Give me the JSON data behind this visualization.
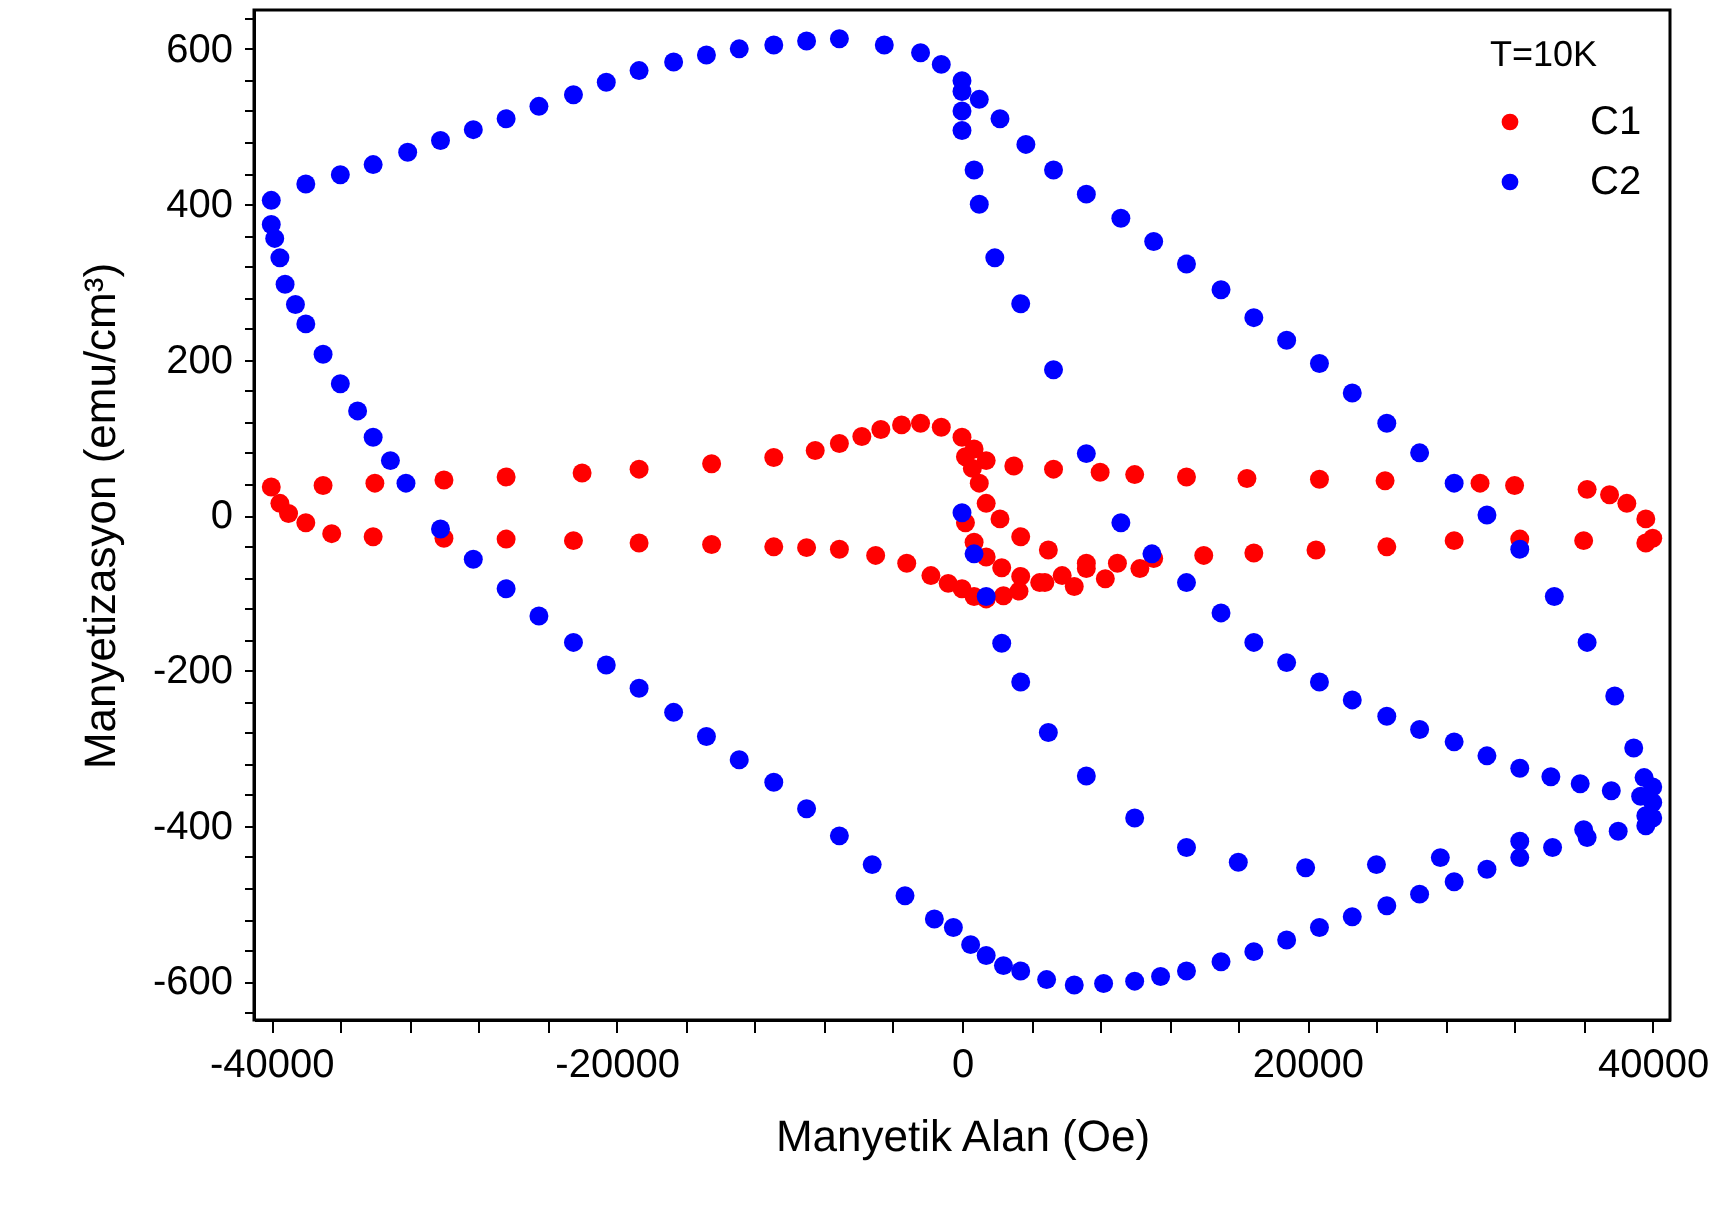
{
  "chart_data": {
    "type": "scatter",
    "xlabel": "Manyetik Alan (Oe)",
    "ylabel": "Manyetizasyon (emu/cm³)",
    "legend_title": "T=10K",
    "legend": "top right",
    "marker": "circle",
    "xlim": [
      -41000,
      41000
    ],
    "ylim": [
      -650,
      650
    ],
    "xticks": [
      -40000,
      {
        "value": -36000,
        "label": null
      },
      {
        "value": -32000,
        "label": null
      },
      {
        "value": -28000,
        "label": null
      },
      {
        "value": -24000,
        "label": null
      },
      -20000,
      {
        "value": -16000,
        "label": null
      },
      {
        "value": -12000,
        "label": null
      },
      {
        "value": -8000,
        "label": null
      },
      {
        "value": -4000,
        "label": null
      },
      0,
      {
        "value": 4000,
        "label": null
      },
      {
        "value": 8000,
        "label": null
      },
      {
        "value": 12000,
        "label": null
      },
      {
        "value": 16000,
        "label": null
      },
      20000,
      {
        "value": 24000,
        "label": null
      },
      {
        "value": 28000,
        "label": null
      },
      {
        "value": 32000,
        "label": null
      },
      {
        "value": 36000,
        "label": null
      },
      40000
    ],
    "yticks": [
      {
        "value": -640,
        "label": null
      },
      -600,
      {
        "value": -560,
        "label": null
      },
      {
        "value": -520,
        "label": null
      },
      {
        "value": -480,
        "label": null
      },
      {
        "value": -440,
        "label": null
      },
      -400,
      {
        "value": -360,
        "label": null
      },
      {
        "value": -320,
        "label": null
      },
      {
        "value": -280,
        "label": null
      },
      {
        "value": -240,
        "label": null
      },
      -200,
      {
        "value": -160,
        "label": null
      },
      {
        "value": -120,
        "label": null
      },
      {
        "value": -80,
        "label": null
      },
      {
        "value": -40,
        "label": null
      },
      0,
      {
        "value": 40,
        "label": null
      },
      {
        "value": 80,
        "label": null
      },
      {
        "value": 120,
        "label": null
      },
      {
        "value": 160,
        "label": null
      },
      200,
      {
        "value": 240,
        "label": null
      },
      {
        "value": 280,
        "label": null
      },
      {
        "value": 320,
        "label": null
      },
      {
        "value": 360,
        "label": null
      },
      400,
      {
        "value": 440,
        "label": null
      },
      {
        "value": 480,
        "label": null
      },
      {
        "value": 520,
        "label": null
      },
      {
        "value": 560,
        "label": null
      },
      600,
      {
        "value": 640,
        "label": null
      }
    ],
    "series": [
      {
        "name": "C1",
        "color": "#ff0000",
        "x": [
          -40000,
          -37000,
          -34000,
          -30000,
          -26400,
          -22000,
          -18700,
          -14500,
          -10900,
          -8500,
          -7100,
          -5800,
          -4700,
          -3500,
          -2400,
          -1200,
          0,
          700,
          1400,
          3000,
          5300,
          8000,
          10000,
          13000,
          16500,
          20700,
          24500,
          30000,
          32000,
          36200,
          37500,
          38500,
          39600,
          40000,
          39600,
          36000,
          32300,
          28500,
          24600,
          20500,
          16900,
          14000,
          11100,
          9000,
          7200,
          5800,
          4500,
          3300,
          2400,
          1400,
          700,
          0,
          -800,
          -1800,
          -3200,
          -5000,
          -7100,
          -9000,
          -10900,
          -14500,
          -18700,
          -22500,
          -26400,
          -30000,
          -34100,
          -36500,
          -38000,
          -39000,
          -39500,
          200,
          600,
          1000,
          1400,
          2200,
          3400,
          5000,
          7200,
          200,
          700,
          1400,
          2300,
          3400,
          4800,
          6500,
          8300,
          10300
        ],
        "values": [
          36,
          38,
          41,
          45,
          49,
          54,
          59,
          66,
          74,
          83,
          92,
          101,
          110,
          116,
          118,
          113,
          100,
          85,
          70,
          63,
          59,
          55,
          52,
          49,
          47,
          46,
          44,
          41,
          38,
          33,
          26,
          15,
          -5,
          -30,
          -36,
          -33,
          -31,
          -33,
          -41,
          -45,
          -49,
          -52,
          -56,
          -62,
          -69,
          -78,
          -87,
          -98,
          -104,
          -108,
          -105,
          -95,
          -88,
          -78,
          -62,
          -52,
          -44,
          -42,
          -41,
          -38,
          -36,
          -33,
          -31,
          -30,
          -28,
          -24,
          -10,
          2,
          15,
          75,
          60,
          41,
          15,
          -5,
          -28,
          -45,
          -62,
          -10,
          -35,
          -54,
          -68,
          -79,
          -87,
          -92,
          -82,
          -69
        ]
      },
      {
        "name": "C2",
        "color": "#0000ff",
        "x": [
          0,
          700,
          1400,
          2300,
          3400,
          5000,
          7200,
          10000,
          13000,
          16000,
          19900,
          24000,
          27700,
          32300,
          36000,
          39600,
          0,
          0,
          0,
          700,
          1000,
          1900,
          3400,
          5300,
          7200,
          9200,
          11000,
          13000,
          15000,
          16900,
          18800,
          20700,
          22600,
          24600,
          26500,
          28500,
          30400,
          32300,
          34100,
          35800,
          37600,
          39300,
          39500,
          38900,
          37800,
          36200,
          34300,
          32300,
          30400,
          28500,
          26500,
          24600,
          22600,
          20700,
          18800,
          16900,
          15000,
          13000,
          11100,
          9200,
          7200,
          5300,
          3700,
          2200,
          1000,
          0,
          -1200,
          -2400,
          -4500,
          -7100,
          -9000,
          -10900,
          -12900,
          -14800,
          -16700,
          -18700,
          -20600,
          -22500,
          -24500,
          -26400,
          -28300,
          -30200,
          -32100,
          -34100,
          -36000,
          -38000,
          -40000,
          -40000,
          -39800,
          -39500,
          -39200,
          -38600,
          -38000,
          -37000,
          -36000,
          -35000,
          -34100,
          -33100,
          -32200,
          -30200,
          -28300,
          -26400,
          -24500,
          -22500,
          -20600,
          -18700,
          -16700,
          -14800,
          -12900,
          -10900,
          -9000,
          -7100,
          -5200,
          -3300,
          -1600,
          -500,
          500,
          1400,
          2400,
          3400,
          4900,
          6500,
          8200,
          10000,
          11500,
          13000,
          15000,
          16900,
          18800,
          20700,
          22600,
          24600,
          26500,
          28500,
          30400,
          32300,
          34200,
          36200,
          38000,
          39600,
          40000,
          40000,
          40000
        ],
        "values": [
          3,
          -50,
          -105,
          -165,
          -215,
          -280,
          -336,
          -390,
          -428,
          -447,
          -454,
          -450,
          -441,
          -420,
          -405,
          -387,
          545,
          520,
          495,
          444,
          400,
          331,
          272,
          187,
          79,
          -10,
          -50,
          -87,
          -126,
          -164,
          -190,
          -215,
          -238,
          -259,
          -276,
          -292,
          -310,
          -326,
          -337,
          -346,
          -355,
          -362,
          -338,
          -300,
          -233,
          -164,
          -105,
          -44,
          0,
          41,
          80,
          118,
          157,
          195,
          225,
          254,
          290,
          323,
          352,
          382,
          413,
          444,
          477,
          510,
          535,
          559,
          580,
          595,
          605,
          613,
          610,
          605,
          600,
          592,
          583,
          572,
          557,
          541,
          526,
          510,
          496,
          482,
          467,
          451,
          438,
          426,
          405,
          374,
          356,
          331,
          297,
          271,
          246,
          207,
          169,
          134,
          100,
          70,
          41,
          -18,
          -57,
          -95,
          -130,
          -164,
          -193,
          -223,
          -254,
          -285,
          -315,
          -344,
          -378,
          -413,
          -450,
          -490,
          -520,
          -531,
          -553,
          -567,
          -580,
          -587,
          -598,
          -605,
          -603,
          -600,
          -594,
          -587,
          -575,
          -562,
          -547,
          -531,
          -517,
          -503,
          -488,
          -472,
          -456,
          -441,
          -428,
          -415,
          -407,
          -400,
          -390,
          -370,
          -350
        ]
      }
    ]
  }
}
